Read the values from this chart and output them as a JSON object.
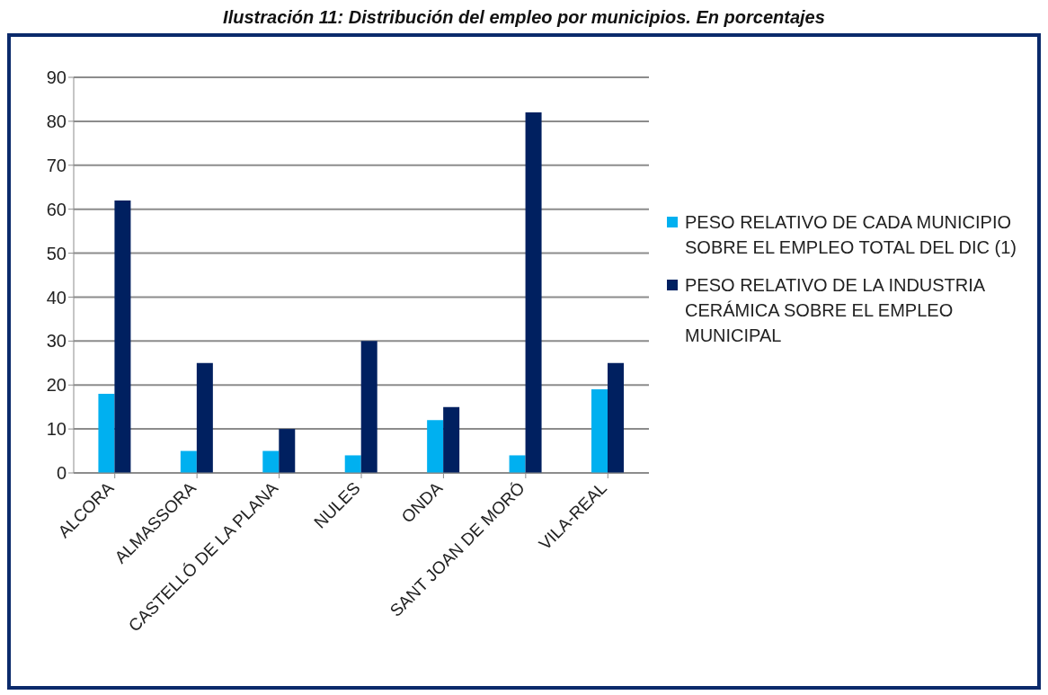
{
  "chart_data": {
    "type": "bar",
    "title": "Ilustración 11: Distribución del empleo por municipios. En porcentajes",
    "categories": [
      "ALCORA",
      "ALMASSORA",
      "CASTELLÓ DE LA PLANA",
      "NULES",
      "ONDA",
      "SANT JOAN DE MORÓ",
      "VILA-REAL"
    ],
    "series": [
      {
        "name": "PESO RELATIVO DE CADA MUNICIPIO SOBRE EL EMPLEO TOTAL DEL DIC (1)",
        "color": "#00b0f0",
        "values": [
          18,
          5,
          5,
          4,
          12,
          4,
          19
        ]
      },
      {
        "name": "PESO RELATIVO DE LA INDUSTRIA CERÁMICA SOBRE EL EMPLEO MUNICIPAL",
        "color": "#002060",
        "values": [
          62,
          25,
          10,
          30,
          15,
          82,
          25
        ]
      }
    ],
    "ylim": [
      0,
      90
    ],
    "yticks": [
      0,
      10,
      20,
      30,
      40,
      50,
      60,
      70,
      80,
      90
    ],
    "grid": "y",
    "legend": "right"
  }
}
